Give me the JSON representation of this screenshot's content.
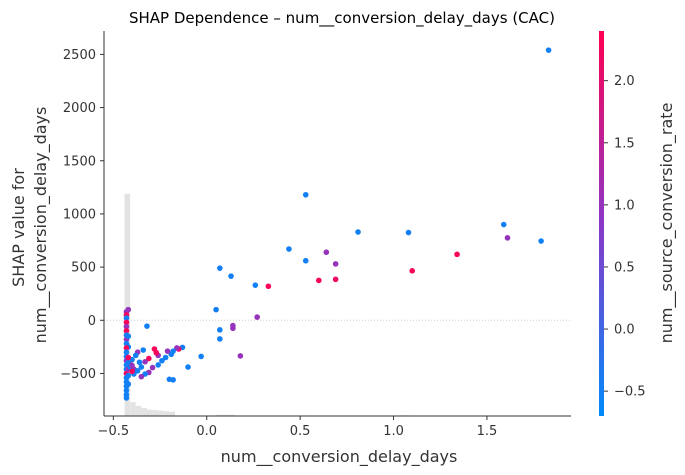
{
  "chart_data": {
    "type": "scatter",
    "title": "SHAP Dependence – num__conversion_delay_days (CAC)",
    "xlabel": "num__conversion_delay_days",
    "ylabel_line1": "SHAP value for",
    "ylabel_line2": "num__conversion_delay_days",
    "colorbar_label": "num__source_conversion_rate",
    "xlim": [
      -0.55,
      1.95
    ],
    "ylim": [
      -900,
      2720
    ],
    "x_ticks": [
      -0.5,
      0.0,
      0.5,
      1.0,
      1.5
    ],
    "x_tick_labels": [
      "−0.5",
      "0.0",
      "0.5",
      "1.0",
      "1.5"
    ],
    "y_ticks": [
      -500,
      0,
      500,
      1000,
      1500,
      2000,
      2500
    ],
    "y_tick_labels": [
      "−500",
      "0",
      "500",
      "1000",
      "1500",
      "2000",
      "2500"
    ],
    "color_range": [
      -0.7,
      2.4
    ],
    "color_ticks": [
      -0.5,
      0.0,
      0.5,
      1.0,
      1.5,
      2.0
    ],
    "color_tick_labels": [
      "−0.5",
      "0.0",
      "0.5",
      "1.0",
      "1.5",
      "2.0"
    ],
    "colors": {
      "low": "#008bfb",
      "mid": "#8b37c7",
      "high": "#ff0052",
      "histogram": "#e3e3e3",
      "zero_line": "#cccccc"
    },
    "grid": false,
    "histogram": {
      "bins": [
        {
          "x0": -0.44,
          "x1": -0.41,
          "height": 2090
        },
        {
          "x0": -0.41,
          "x1": -0.38,
          "height": 130
        },
        {
          "x0": -0.38,
          "x1": -0.35,
          "height": 95
        },
        {
          "x0": -0.35,
          "x1": -0.32,
          "height": 75
        },
        {
          "x0": -0.32,
          "x1": -0.29,
          "height": 60
        },
        {
          "x0": -0.29,
          "x1": -0.26,
          "height": 55
        },
        {
          "x0": -0.26,
          "x1": -0.23,
          "height": 50
        },
        {
          "x0": -0.23,
          "x1": -0.2,
          "height": 45
        },
        {
          "x0": -0.2,
          "x1": -0.17,
          "height": 40
        },
        {
          "x0": 0.05,
          "x1": 0.15,
          "height": 12
        },
        {
          "x0": 0.5,
          "x1": 0.55,
          "height": 6
        },
        {
          "x0": 1.02,
          "x1": 1.1,
          "height": 6
        }
      ]
    },
    "points": [
      {
        "x": 1.83,
        "y": 2540,
        "c": -0.5
      },
      {
        "x": 1.59,
        "y": 900,
        "c": -0.5
      },
      {
        "x": 1.61,
        "y": 775,
        "c": 1.0
      },
      {
        "x": 1.79,
        "y": 745,
        "c": -0.5
      },
      {
        "x": 1.34,
        "y": 620,
        "c": 2.3
      },
      {
        "x": 1.08,
        "y": 825,
        "c": -0.5
      },
      {
        "x": 1.1,
        "y": 465,
        "c": 2.3
      },
      {
        "x": 0.81,
        "y": 830,
        "c": -0.5
      },
      {
        "x": 0.53,
        "y": 1180,
        "c": -0.5
      },
      {
        "x": 0.44,
        "y": 670,
        "c": -0.5
      },
      {
        "x": 0.53,
        "y": 560,
        "c": -0.5
      },
      {
        "x": 0.64,
        "y": 640,
        "c": 1.0
      },
      {
        "x": 0.69,
        "y": 530,
        "c": 1.0
      },
      {
        "x": 0.6,
        "y": 375,
        "c": 2.3
      },
      {
        "x": 0.69,
        "y": 385,
        "c": 2.2
      },
      {
        "x": 0.33,
        "y": 320,
        "c": 2.3
      },
      {
        "x": 0.26,
        "y": 330,
        "c": -0.5
      },
      {
        "x": 0.27,
        "y": 30,
        "c": 1.0
      },
      {
        "x": 0.18,
        "y": -335,
        "c": 1.0
      },
      {
        "x": 0.07,
        "y": 490,
        "c": -0.5
      },
      {
        "x": 0.13,
        "y": 415,
        "c": -0.5
      },
      {
        "x": 0.05,
        "y": 100,
        "c": -0.5
      },
      {
        "x": 0.07,
        "y": -90,
        "c": -0.5
      },
      {
        "x": 0.07,
        "y": -175,
        "c": -0.5
      },
      {
        "x": 0.14,
        "y": -50,
        "c": 1.0
      },
      {
        "x": 0.14,
        "y": -75,
        "c": 1.0
      },
      {
        "x": -0.03,
        "y": -340,
        "c": -0.5
      },
      {
        "x": -0.1,
        "y": -440,
        "c": -0.5
      },
      {
        "x": -0.13,
        "y": -255,
        "c": -0.5
      },
      {
        "x": -0.15,
        "y": -270,
        "c": 2.3
      },
      {
        "x": -0.16,
        "y": -260,
        "c": 1.0
      },
      {
        "x": -0.18,
        "y": -290,
        "c": -0.5
      },
      {
        "x": -0.18,
        "y": -560,
        "c": -0.5
      },
      {
        "x": -0.2,
        "y": -555,
        "c": -0.5
      },
      {
        "x": -0.19,
        "y": -320,
        "c": -0.5
      },
      {
        "x": -0.21,
        "y": -290,
        "c": 1.0
      },
      {
        "x": -0.22,
        "y": -350,
        "c": -0.5
      },
      {
        "x": -0.24,
        "y": -380,
        "c": -0.5
      },
      {
        "x": -0.26,
        "y": -330,
        "c": 1.0
      },
      {
        "x": -0.27,
        "y": -305,
        "c": 2.3
      },
      {
        "x": -0.28,
        "y": -270,
        "c": 2.3
      },
      {
        "x": -0.26,
        "y": -420,
        "c": -0.5
      },
      {
        "x": -0.29,
        "y": -445,
        "c": 1.0
      },
      {
        "x": -0.31,
        "y": -360,
        "c": 2.3
      },
      {
        "x": -0.33,
        "y": -390,
        "c": 1.0
      },
      {
        "x": -0.35,
        "y": -440,
        "c": -0.5
      },
      {
        "x": -0.34,
        "y": -280,
        "c": -0.5
      },
      {
        "x": -0.32,
        "y": -55,
        "c": -0.5
      },
      {
        "x": -0.31,
        "y": -490,
        "c": 1.0
      },
      {
        "x": -0.37,
        "y": -300,
        "c": 1.0
      },
      {
        "x": -0.36,
        "y": -395,
        "c": -0.5
      },
      {
        "x": -0.38,
        "y": -330,
        "c": -0.5
      },
      {
        "x": -0.39,
        "y": -460,
        "c": 1.0
      },
      {
        "x": -0.4,
        "y": -370,
        "c": -0.5
      },
      {
        "x": -0.41,
        "y": -415,
        "c": 2.3
      },
      {
        "x": -0.37,
        "y": -475,
        "c": -0.5
      },
      {
        "x": -0.33,
        "y": -505,
        "c": -0.5
      },
      {
        "x": -0.35,
        "y": -530,
        "c": 1.0
      },
      {
        "x": -0.39,
        "y": -505,
        "c": -0.5
      },
      {
        "x": -0.42,
        "y": -250,
        "c": -0.5
      },
      {
        "x": -0.43,
        "y": 80,
        "c": 1.0
      },
      {
        "x": -0.43,
        "y": 50,
        "c": 2.3
      },
      {
        "x": -0.43,
        "y": 20,
        "c": -0.5
      },
      {
        "x": -0.43,
        "y": -20,
        "c": 2.3
      },
      {
        "x": -0.43,
        "y": -60,
        "c": 1.0
      },
      {
        "x": -0.43,
        "y": -100,
        "c": 2.3
      },
      {
        "x": -0.43,
        "y": -140,
        "c": -0.5
      },
      {
        "x": -0.43,
        "y": -180,
        "c": 1.0
      },
      {
        "x": -0.43,
        "y": -220,
        "c": -0.5
      },
      {
        "x": -0.43,
        "y": -260,
        "c": 2.3
      },
      {
        "x": -0.43,
        "y": -300,
        "c": -0.5
      },
      {
        "x": -0.43,
        "y": -340,
        "c": -0.5
      },
      {
        "x": -0.43,
        "y": -380,
        "c": 1.0
      },
      {
        "x": -0.43,
        "y": -420,
        "c": -0.5
      },
      {
        "x": -0.43,
        "y": -460,
        "c": -0.5
      },
      {
        "x": -0.43,
        "y": -500,
        "c": 2.3
      },
      {
        "x": -0.43,
        "y": -540,
        "c": -0.5
      },
      {
        "x": -0.43,
        "y": -580,
        "c": -0.5
      },
      {
        "x": -0.43,
        "y": -620,
        "c": -0.5
      },
      {
        "x": -0.43,
        "y": -660,
        "c": -0.5
      },
      {
        "x": -0.43,
        "y": -700,
        "c": -0.5
      },
      {
        "x": -0.43,
        "y": -730,
        "c": -0.5
      },
      {
        "x": -0.42,
        "y": -400,
        "c": -0.5
      },
      {
        "x": -0.42,
        "y": -460,
        "c": 1.0
      },
      {
        "x": -0.42,
        "y": -520,
        "c": -0.5
      },
      {
        "x": -0.42,
        "y": -600,
        "c": -0.5
      },
      {
        "x": -0.42,
        "y": -350,
        "c": 2.3
      },
      {
        "x": -0.42,
        "y": -150,
        "c": -0.5
      },
      {
        "x": -0.42,
        "y": 100,
        "c": 1.0
      },
      {
        "x": -0.41,
        "y": -440,
        "c": -0.5
      },
      {
        "x": -0.4,
        "y": -480,
        "c": 2.3
      },
      {
        "x": -0.4,
        "y": -425,
        "c": 1.0
      }
    ]
  }
}
